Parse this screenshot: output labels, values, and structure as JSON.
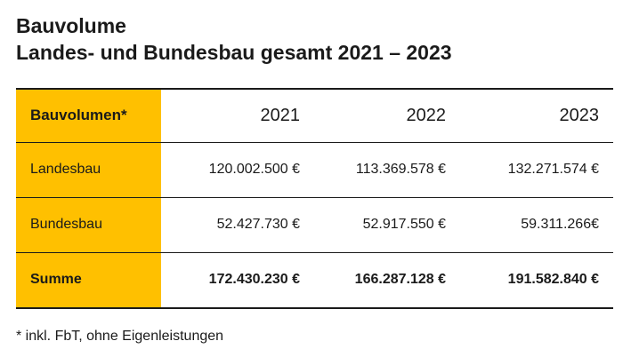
{
  "chart_data": {
    "type": "table",
    "title": "Bauvolume",
    "subtitle": "Landes- und Bundesbau gesamt 2021 – 2023",
    "header": {
      "row_label": "Bauvolumen*",
      "columns": [
        "2021",
        "2022",
        "2023"
      ]
    },
    "rows": [
      {
        "label": "Landesbau",
        "values": [
          "120.002.500 €",
          "113.369.578 €",
          "132.271.574 €"
        ]
      },
      {
        "label": "Bundesbau",
        "values": [
          "52.427.730 €",
          "52.917.550 €",
          "59.311.266€"
        ]
      },
      {
        "label": "Summe",
        "values": [
          "172.430.230 €",
          "166.287.128 €",
          "191.582.840 €"
        ]
      }
    ],
    "footnote": "* inkl. FbT, ohne Eigenleistungen"
  },
  "colors": {
    "accent": "#ffc000",
    "text": "#1a1a1a"
  }
}
